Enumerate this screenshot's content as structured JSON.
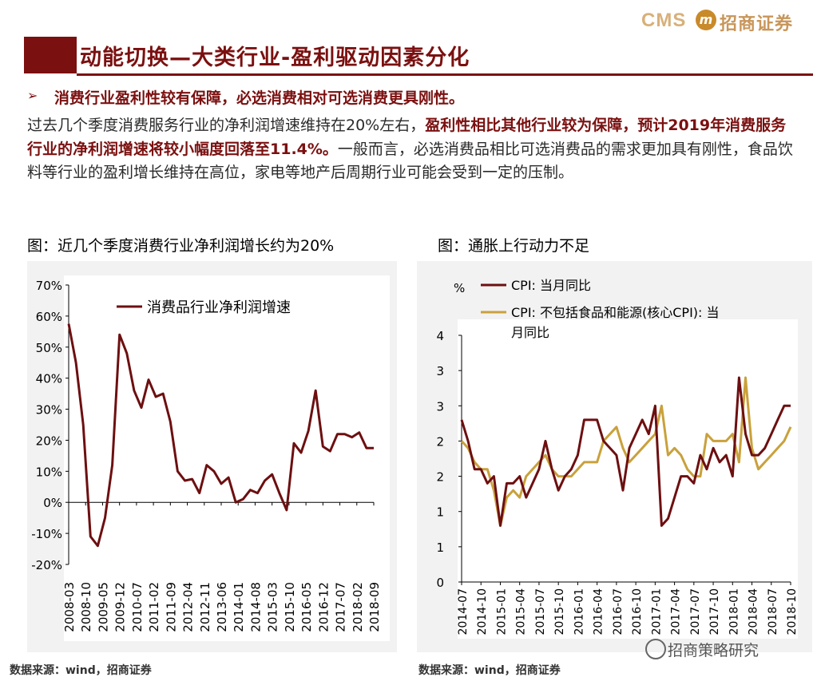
{
  "header": {
    "logo_text": "CMS",
    "logo_badge": "m",
    "logo_cn": "招商证券",
    "title": "动能切换—大类行业-盈利驱动因素分化"
  },
  "bullet": {
    "arrow": "➢",
    "text": "消费行业盈利性较有保障，必选消费相对可选消费更具刚性。"
  },
  "paragraph": {
    "part1": "过去几个季度消费服务行业的净利润增速维持在20%左右，",
    "part2_bold": "盈利性相比其他行业较为保障，预计2019年消费服务行业的净利润增速将较小幅度回落至11.4%。",
    "part3": "一般而言，必选消费品相比可选消费品的需求更加具有刚性，食品饮料等行业的盈利增长维持在高位，家电等地产后周期行业可能会受到一定的压制。"
  },
  "left_caption": "图：近几个季度消费行业净利润增长约为20%",
  "right_caption": "图：通胀上行动力不足",
  "left_source": "数据来源：wind，招商证券",
  "right_source": "数据来源：wind，招商证券",
  "watermark": "招商策略研究",
  "colors": {
    "brand": "#7b1010",
    "series_dark": "#6d0f10",
    "series_gold": "#c9a13c",
    "panel_bg": "#f2f2f2"
  },
  "chart_data": [
    {
      "type": "line",
      "title": "",
      "legend": [
        "消费品行业净利润增速"
      ],
      "ylim": [
        -20,
        70
      ],
      "yticks": [
        "-20%",
        "-10%",
        "0%",
        "10%",
        "20%",
        "30%",
        "40%",
        "50%",
        "60%",
        "70%"
      ],
      "xticks": [
        "2008-03",
        "2008-10",
        "2009-05",
        "2009-12",
        "2010-07",
        "2011-02",
        "2011-09",
        "2012-04",
        "2012-11",
        "2013-06",
        "2014-01",
        "2014-08",
        "2015-03",
        "2015-10",
        "2016-05",
        "2016-12",
        "2017-07",
        "2018-02",
        "2018-09"
      ],
      "legend_placement": "top-center",
      "grid": false,
      "x": [
        "2008-03",
        "2008-06",
        "2008-09",
        "2008-12",
        "2009-03",
        "2009-06",
        "2009-09",
        "2009-12",
        "2010-03",
        "2010-06",
        "2010-09",
        "2010-12",
        "2011-03",
        "2011-06",
        "2011-09",
        "2011-12",
        "2012-03",
        "2012-06",
        "2012-09",
        "2012-12",
        "2013-03",
        "2013-06",
        "2013-09",
        "2013-12",
        "2014-03",
        "2014-06",
        "2014-09",
        "2014-12",
        "2015-03",
        "2015-06",
        "2015-09",
        "2015-12",
        "2016-03",
        "2016-06",
        "2016-09",
        "2016-12",
        "2017-03",
        "2017-06",
        "2017-09",
        "2017-12",
        "2018-03",
        "2018-06",
        "2018-09"
      ],
      "series": [
        {
          "name": "消费品行业净利润增速",
          "color": "#6d0f10",
          "values": [
            57.5,
            45,
            25,
            -11,
            -14,
            -5,
            12,
            54,
            48,
            36,
            30.5,
            39.5,
            34,
            35,
            26,
            10,
            7,
            7.5,
            3,
            12,
            10,
            6,
            8,
            0,
            1,
            4,
            3,
            7,
            9,
            3,
            -2.5,
            19,
            16,
            23,
            36,
            18,
            16.5,
            22,
            22,
            21,
            22.5,
            17.5,
            17.5
          ]
        }
      ]
    },
    {
      "type": "line",
      "title": "",
      "ylabel": "%",
      "ylim": [
        0,
        4
      ],
      "yticks": [
        "0",
        "1",
        "1",
        "2",
        "2",
        "3",
        "3",
        "4"
      ],
      "xticks": [
        "2014-07",
        "2014-10",
        "2015-01",
        "2015-04",
        "2015-07",
        "2015-10",
        "2016-01",
        "2016-04",
        "2016-07",
        "2016-10",
        "2017-01",
        "2017-04",
        "2017-07",
        "2017-10",
        "2018-01",
        "2018-04",
        "2018-07",
        "2018-10"
      ],
      "legend_placement": "top-left",
      "grid": false,
      "x": [
        "2014-07",
        "2014-08",
        "2014-09",
        "2014-10",
        "2014-11",
        "2014-12",
        "2015-01",
        "2015-02",
        "2015-03",
        "2015-04",
        "2015-05",
        "2015-06",
        "2015-07",
        "2015-08",
        "2015-09",
        "2015-10",
        "2015-11",
        "2015-12",
        "2016-01",
        "2016-02",
        "2016-03",
        "2016-04",
        "2016-05",
        "2016-06",
        "2016-07",
        "2016-08",
        "2016-09",
        "2016-10",
        "2016-11",
        "2016-12",
        "2017-01",
        "2017-02",
        "2017-03",
        "2017-04",
        "2017-05",
        "2017-06",
        "2017-07",
        "2017-08",
        "2017-09",
        "2017-10",
        "2017-11",
        "2017-12",
        "2018-01",
        "2018-02",
        "2018-03",
        "2018-04",
        "2018-05",
        "2018-06",
        "2018-07",
        "2018-08",
        "2018-09",
        "2018-10"
      ],
      "series": [
        {
          "name": "CPI: 当月同比",
          "color": "#6d0f10",
          "values": [
            2.3,
            2.0,
            1.6,
            1.6,
            1.4,
            1.5,
            0.8,
            1.4,
            1.4,
            1.5,
            1.2,
            1.4,
            1.6,
            2.0,
            1.6,
            1.3,
            1.5,
            1.6,
            1.8,
            2.3,
            2.3,
            2.3,
            2.0,
            1.9,
            1.8,
            1.3,
            1.9,
            2.1,
            2.3,
            2.1,
            2.5,
            0.8,
            0.9,
            1.2,
            1.5,
            1.5,
            1.4,
            1.8,
            1.6,
            1.9,
            1.7,
            1.8,
            1.5,
            2.9,
            2.1,
            1.8,
            1.8,
            1.9,
            2.1,
            2.3,
            2.5,
            2.5
          ]
        },
        {
          "name": "CPI: 不包括食品和能源(核心CPI): 当月同比",
          "color": "#c9a13c",
          "values": [
            2.0,
            1.9,
            1.7,
            1.6,
            1.6,
            1.3,
            0.8,
            1.2,
            1.3,
            1.2,
            1.5,
            1.6,
            1.7,
            1.8,
            1.6,
            1.5,
            1.5,
            1.5,
            1.6,
            1.7,
            1.7,
            1.7,
            2.0,
            2.1,
            2.2,
            1.9,
            1.7,
            1.8,
            1.9,
            2.0,
            2.1,
            2.5,
            1.8,
            1.9,
            1.8,
            1.6,
            1.5,
            1.5,
            2.1,
            2.0,
            2.0,
            2.0,
            2.1,
            1.7,
            2.9,
            1.9,
            1.6,
            1.7,
            1.8,
            1.9,
            2.0,
            2.2
          ]
        }
      ]
    }
  ]
}
